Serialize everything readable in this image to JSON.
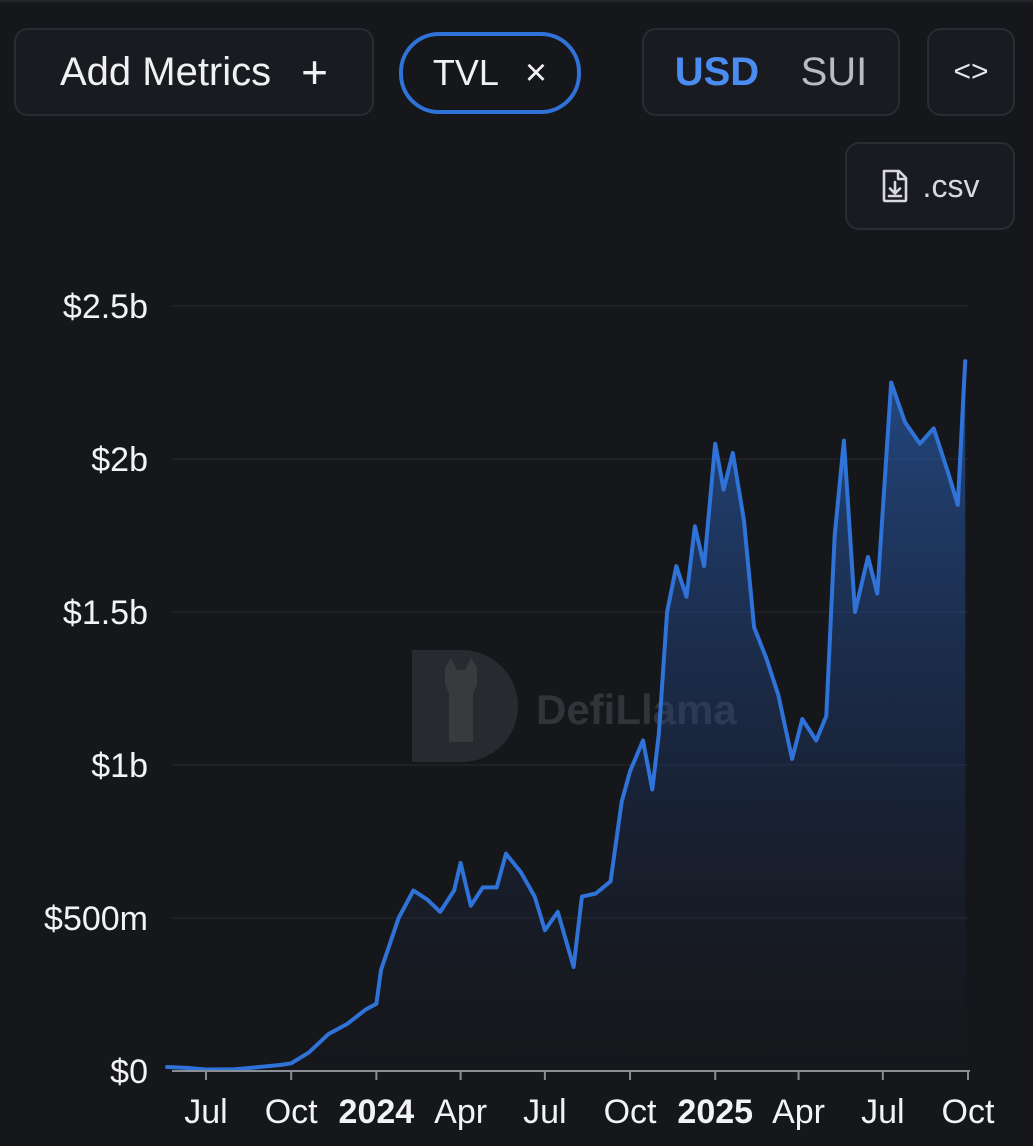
{
  "controls": {
    "add_metrics_label": "Add Metrics",
    "add_metrics_plus": "+",
    "metric_chip_label": "TVL",
    "metric_chip_close": "×",
    "currency_usd": "USD",
    "currency_sui": "SUI",
    "currency_selected": "USD",
    "embed_icon": "<>",
    "csv_label": ".csv"
  },
  "watermark": {
    "text": "DefiLlama"
  },
  "colors": {
    "background": "#16171b",
    "line": "#2f72d8",
    "accent": "#4a8cf0"
  },
  "chart_data": {
    "type": "area",
    "title": "",
    "xlabel": "",
    "ylabel": "",
    "y_unit": "USD",
    "ylim": [
      0,
      2500000000
    ],
    "y_ticks": [
      {
        "value": 0,
        "label": "$0"
      },
      {
        "value": 500000000,
        "label": "$500m"
      },
      {
        "value": 1000000000,
        "label": "$1b"
      },
      {
        "value": 1500000000,
        "label": "$1.5b"
      },
      {
        "value": 2000000000,
        "label": "$2b"
      },
      {
        "value": 2500000000,
        "label": "$2.5b"
      }
    ],
    "x_range": [
      "2023-05-20",
      "2025-10-01"
    ],
    "x_ticks": [
      {
        "date": "2023-07-01",
        "label": "Jul",
        "bold": false
      },
      {
        "date": "2023-10-01",
        "label": "Oct",
        "bold": false
      },
      {
        "date": "2024-01-01",
        "label": "2024",
        "bold": true
      },
      {
        "date": "2024-04-01",
        "label": "Apr",
        "bold": false
      },
      {
        "date": "2024-07-01",
        "label": "Jul",
        "bold": false
      },
      {
        "date": "2024-10-01",
        "label": "Oct",
        "bold": false
      },
      {
        "date": "2025-01-01",
        "label": "2025",
        "bold": true
      },
      {
        "date": "2025-04-01",
        "label": "Apr",
        "bold": false
      },
      {
        "date": "2025-07-01",
        "label": "Jul",
        "bold": false
      },
      {
        "date": "2025-10-01",
        "label": "Oct",
        "bold": false
      }
    ],
    "grid": true,
    "series": [
      {
        "name": "TVL",
        "points": [
          [
            "2023-05-20",
            13000000
          ],
          [
            "2023-06-10",
            10000000
          ],
          [
            "2023-07-01",
            5000000
          ],
          [
            "2023-08-01",
            6000000
          ],
          [
            "2023-08-25",
            12000000
          ],
          [
            "2023-09-20",
            20000000
          ],
          [
            "2023-10-01",
            25000000
          ],
          [
            "2023-10-20",
            60000000
          ],
          [
            "2023-11-10",
            120000000
          ],
          [
            "2023-12-01",
            155000000
          ],
          [
            "2023-12-20",
            200000000
          ],
          [
            "2024-01-01",
            220000000
          ],
          [
            "2024-01-06",
            330000000
          ],
          [
            "2024-01-25",
            500000000
          ],
          [
            "2024-02-10",
            590000000
          ],
          [
            "2024-02-25",
            560000000
          ],
          [
            "2024-03-10",
            520000000
          ],
          [
            "2024-03-25",
            590000000
          ],
          [
            "2024-04-01",
            680000000
          ],
          [
            "2024-04-12",
            540000000
          ],
          [
            "2024-04-25",
            600000000
          ],
          [
            "2024-05-10",
            600000000
          ],
          [
            "2024-05-20",
            710000000
          ],
          [
            "2024-06-05",
            650000000
          ],
          [
            "2024-06-20",
            570000000
          ],
          [
            "2024-07-01",
            460000000
          ],
          [
            "2024-07-15",
            520000000
          ],
          [
            "2024-08-01",
            340000000
          ],
          [
            "2024-08-10",
            570000000
          ],
          [
            "2024-08-25",
            580000000
          ],
          [
            "2024-09-10",
            620000000
          ],
          [
            "2024-09-22",
            880000000
          ],
          [
            "2024-10-01",
            980000000
          ],
          [
            "2024-10-15",
            1080000000
          ],
          [
            "2024-10-25",
            920000000
          ],
          [
            "2024-11-01",
            1100000000
          ],
          [
            "2024-11-10",
            1500000000
          ],
          [
            "2024-11-20",
            1650000000
          ],
          [
            "2024-12-01",
            1550000000
          ],
          [
            "2024-12-10",
            1780000000
          ],
          [
            "2024-12-20",
            1650000000
          ],
          [
            "2025-01-01",
            2050000000
          ],
          [
            "2025-01-10",
            1900000000
          ],
          [
            "2025-01-20",
            2020000000
          ],
          [
            "2025-02-01",
            1800000000
          ],
          [
            "2025-02-12",
            1450000000
          ],
          [
            "2025-02-25",
            1350000000
          ],
          [
            "2025-03-10",
            1230000000
          ],
          [
            "2025-03-25",
            1020000000
          ],
          [
            "2025-04-05",
            1150000000
          ],
          [
            "2025-04-20",
            1080000000
          ],
          [
            "2025-05-01",
            1160000000
          ],
          [
            "2025-05-10",
            1750000000
          ],
          [
            "2025-05-20",
            2060000000
          ],
          [
            "2025-06-01",
            1500000000
          ],
          [
            "2025-06-15",
            1680000000
          ],
          [
            "2025-06-25",
            1560000000
          ],
          [
            "2025-07-10",
            2250000000
          ],
          [
            "2025-07-25",
            2120000000
          ],
          [
            "2025-08-10",
            2050000000
          ],
          [
            "2025-08-25",
            2100000000
          ],
          [
            "2025-09-10",
            1950000000
          ],
          [
            "2025-09-20",
            1850000000
          ],
          [
            "2025-09-28",
            2320000000
          ]
        ]
      }
    ]
  }
}
